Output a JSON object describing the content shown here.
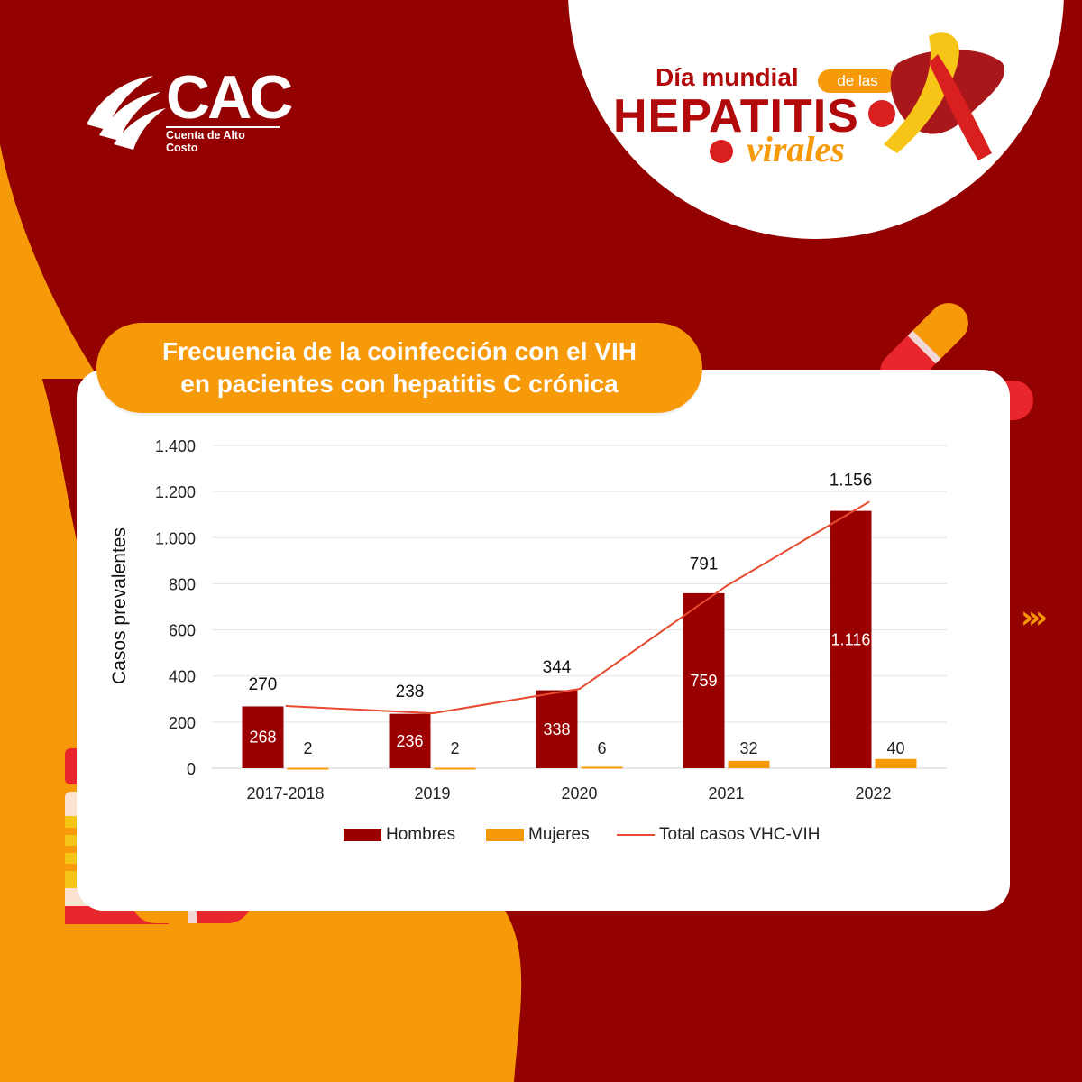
{
  "brand": {
    "logo_text": "CAC",
    "logo_subtitle": "Cuenta de Alto Costo"
  },
  "badge": {
    "line1": "Día mundial",
    "pill": "de las",
    "line2": "HEPATITIS",
    "line3": "virales"
  },
  "title": {
    "line1": "Frecuencia de la coinfección con el VIH",
    "line2": "en pacientes con hepatitis C crónica"
  },
  "colors": {
    "dark_red": "#930100",
    "bar_red": "#9a0000",
    "orange": "#f79a09",
    "line": "#e84a2f"
  },
  "chart_data": {
    "type": "bar",
    "title": "Frecuencia de la coinfección con el VIH en pacientes con hepatitis C crónica",
    "xlabel": "",
    "ylabel": "Casos prevalentes",
    "ylim": [
      0,
      1400
    ],
    "yticks": [
      0,
      200,
      400,
      600,
      800,
      1000,
      1200,
      1400
    ],
    "ytick_labels": [
      "0",
      "200",
      "400",
      "600",
      "800",
      "1.000",
      "1.200",
      "1.400"
    ],
    "grid": true,
    "legend_position": "bottom",
    "categories": [
      "2017-2018",
      "2019",
      "2020",
      "2021",
      "2022"
    ],
    "series": [
      {
        "name": "Hombres",
        "kind": "bar",
        "color": "#9a0000",
        "values": [
          268,
          236,
          338,
          759,
          1116
        ],
        "labels": [
          "268",
          "236",
          "338",
          "759",
          "1.116"
        ]
      },
      {
        "name": "Mujeres",
        "kind": "bar",
        "color": "#f79a09",
        "values": [
          2,
          2,
          6,
          32,
          40
        ],
        "labels": [
          "2",
          "2",
          "6",
          "32",
          "40"
        ]
      },
      {
        "name": "Total casos VHC-VIH",
        "kind": "line",
        "color": "#e84a2f",
        "values": [
          270,
          238,
          344,
          791,
          1156
        ],
        "labels": [
          "270",
          "238",
          "344",
          "791",
          "1.156"
        ]
      }
    ]
  }
}
